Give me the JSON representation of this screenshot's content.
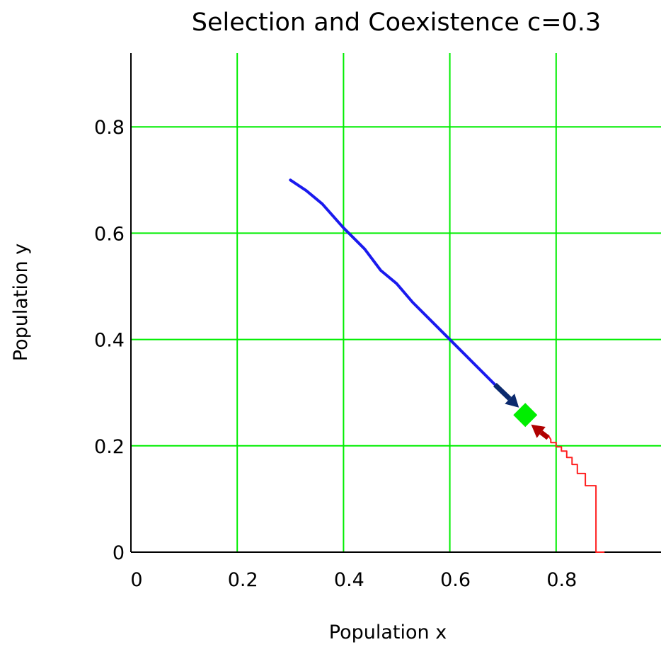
{
  "chart_data": {
    "type": "line",
    "title": "Selection and Coexistence  c=0.3",
    "xlabel": "Population x",
    "ylabel": "Population y",
    "xlim": [
      0,
      0.99
    ],
    "ylim": [
      0,
      0.99
    ],
    "xticks": [
      0,
      0.2,
      0.4,
      0.6,
      0.8
    ],
    "yticks": [
      0,
      0.2,
      0.4,
      0.6,
      0.8
    ],
    "xtick_labels": [
      "0",
      "0.2",
      "0.4",
      "0.6",
      "0.8"
    ],
    "ytick_labels": [
      "0",
      "0.2",
      "0.4",
      "0.6",
      "0.8"
    ],
    "grid": true,
    "colors": {
      "grid": "#00ee00",
      "trajectory_1": "#1a1aee",
      "trajectory_2": "#ff2020",
      "arrow_1": "#0b2a6e",
      "arrow_2": "#b00000",
      "equilibrium": "#00ee00"
    },
    "series": [
      {
        "style": "line",
        "color_key": "trajectory_1",
        "x": [
          0.3,
          0.33,
          0.36,
          0.4,
          0.44,
          0.47,
          0.5,
          0.53,
          0.56,
          0.58,
          0.6,
          0.63,
          0.66,
          0.69,
          0.71
        ],
        "y": [
          0.7,
          0.68,
          0.655,
          0.61,
          0.57,
          0.53,
          0.505,
          0.47,
          0.44,
          0.42,
          0.4,
          0.37,
          0.34,
          0.31,
          0.29
        ]
      },
      {
        "style": "step",
        "color_key": "trajectory_2",
        "x": [
          0.89,
          0.875,
          0.875,
          0.855,
          0.855,
          0.84,
          0.84,
          0.83,
          0.83,
          0.82,
          0.82,
          0.81,
          0.81,
          0.8,
          0.8,
          0.79,
          0.79,
          0.785
        ],
        "y": [
          0.0,
          0.0,
          0.125,
          0.125,
          0.148,
          0.148,
          0.165,
          0.165,
          0.178,
          0.178,
          0.19,
          0.19,
          0.198,
          0.198,
          0.206,
          0.206,
          0.212,
          0.22
        ]
      }
    ],
    "arrows": [
      {
        "color_key": "arrow_1",
        "from": [
          0.685,
          0.315
        ],
        "to": [
          0.73,
          0.272
        ]
      },
      {
        "color_key": "arrow_2",
        "from": [
          0.785,
          0.215
        ],
        "to": [
          0.753,
          0.24
        ]
      }
    ],
    "equilibrium_point": {
      "x": 0.742,
      "y": 0.258,
      "marker": "diamond",
      "color_key": "equilibrium"
    }
  }
}
